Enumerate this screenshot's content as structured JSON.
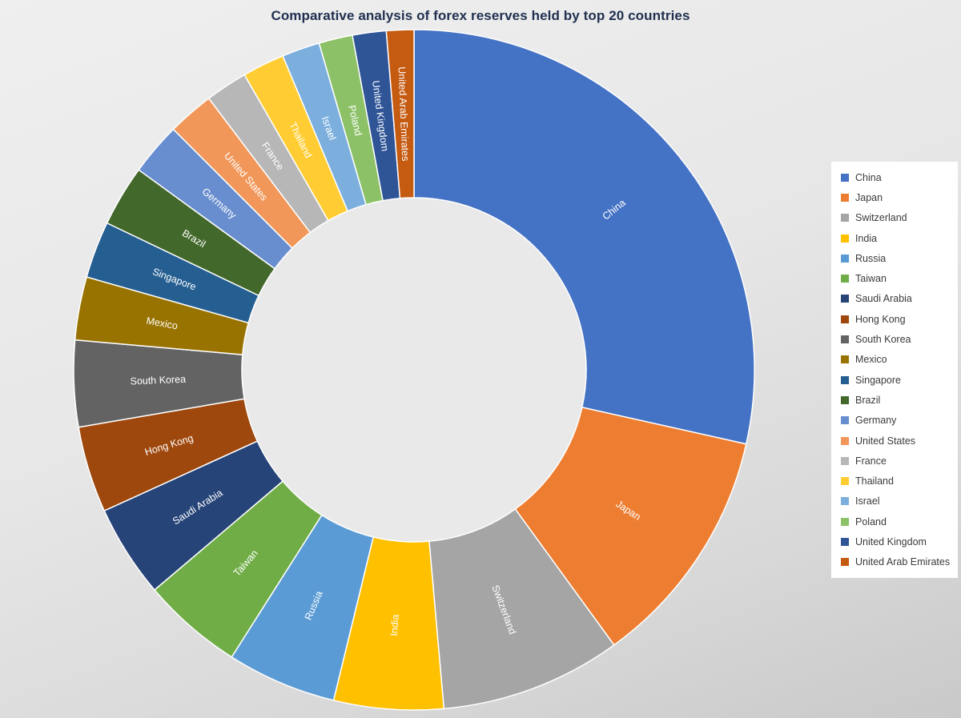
{
  "title": {
    "text": "Comparative analysis of forex reserves held by top 20 countries",
    "color": "#203050"
  },
  "chart_data": {
    "type": "pie",
    "subtype": "donut",
    "title": "Comparative analysis of forex reserves held by top 20 countries",
    "direction": "clockwise",
    "start_angle_deg": 0,
    "inner_radius_ratio": 0.51,
    "legend_position": "right",
    "value_format": "percent_of_total_estimated_from_arc_angles",
    "categories": [
      "China",
      "Japan",
      "Switzerland",
      "India",
      "Russia",
      "Taiwan",
      "Saudi Arabia",
      "Hong Kong",
      "South Korea",
      "Mexico",
      "Singapore",
      "Brazil",
      "Germany",
      "United States",
      "France",
      "Thailand",
      "Israel",
      "Poland",
      "United Kingdom",
      "United Arab Emirates"
    ],
    "values": [
      28.5,
      11.5,
      8.6,
      5.2,
      5.2,
      4.8,
      4.4,
      4.1,
      4.1,
      3.0,
      2.7,
      2.9,
      2.5,
      2.2,
      2.0,
      2.0,
      1.8,
      1.6,
      1.6,
      1.3
    ],
    "colors": [
      "#4472C4",
      "#ED7D31",
      "#A5A5A5",
      "#FFC000",
      "#5B9BD5",
      "#70AD47",
      "#264478",
      "#9E480E",
      "#636363",
      "#997300",
      "#255E91",
      "#43682B",
      "#698ED0",
      "#F1975A",
      "#B7B7B7",
      "#FFCD33",
      "#7CAFDD",
      "#8CC168",
      "#2F5597",
      "#C55A11"
    ],
    "slice_label_color": "#FFFFFF"
  },
  "style": {
    "background_top": "#EFEFEF",
    "background_bottom": "#C9C9C9",
    "hole_color": "#E9E9E9",
    "slice_stroke": "#FFFFFF",
    "legend_background": "#FFFFFF",
    "legend_text_color": "#3B3B3B",
    "title_color": "#203050"
  }
}
